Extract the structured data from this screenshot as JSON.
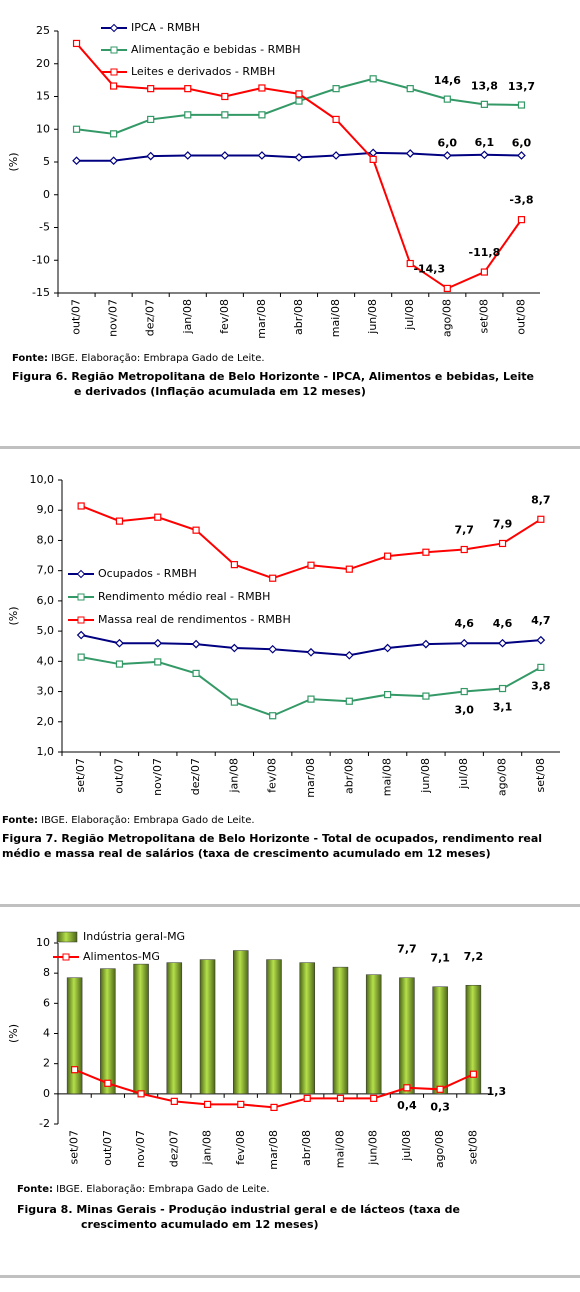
{
  "chart_data": [
    {
      "type": "line",
      "ylabel": "(%)",
      "legend": "upper left",
      "categories": [
        "out/07",
        "nov/07",
        "dez/07",
        "jan/08",
        "fev/08",
        "mar/08",
        "abr/08",
        "mai/08",
        "jun/08",
        "jul/08",
        "ago/08",
        "set/08",
        "out/08"
      ],
      "ylim": [
        -15,
        25
      ],
      "yticks": [
        -15,
        -10,
        -5,
        0,
        5,
        10,
        15,
        20,
        25
      ],
      "series": [
        {
          "name": "IPCA - RMBH",
          "color": "#000080",
          "marker": "diamond",
          "values": [
            5.2,
            5.2,
            5.9,
            6.0,
            6.0,
            6.0,
            5.7,
            6.0,
            6.4,
            6.3,
            6.0,
            6.1,
            6.0
          ],
          "value_labels": [
            null,
            null,
            null,
            null,
            null,
            null,
            null,
            null,
            null,
            null,
            "6,0",
            "6,1",
            "6,0"
          ]
        },
        {
          "name": "Alimentação e bebidas - RMBH",
          "color": "#339966",
          "marker": "square",
          "values": [
            10.0,
            9.3,
            11.5,
            12.2,
            12.2,
            12.2,
            14.3,
            16.2,
            17.7,
            16.2,
            14.6,
            13.8,
            13.7
          ],
          "value_labels": [
            null,
            null,
            null,
            null,
            null,
            null,
            null,
            null,
            null,
            null,
            "14,6",
            "13,8",
            "13,7"
          ]
        },
        {
          "name": "Leites e derivados - RMBH",
          "color": "#ff0000",
          "marker": "square",
          "values": [
            23.1,
            16.6,
            16.2,
            16.2,
            15.0,
            16.3,
            15.4,
            11.5,
            5.4,
            -10.5,
            -14.3,
            -11.8,
            -3.8
          ],
          "value_labels": [
            null,
            null,
            null,
            null,
            null,
            null,
            null,
            null,
            null,
            null,
            "-14,3",
            "-11,8",
            "-3,8"
          ]
        }
      ],
      "source_label": "Fonte:",
      "source": "IBGE. Elaboração: Embrapa Gado de Leite.",
      "caption": "Figura 6. Região Metropolitana de Belo Horizonte - IPCA, Alimentos e bebidas, Leite e derivados (Inflação acumulada em 12 meses)"
    },
    {
      "type": "line",
      "ylabel": "(%)",
      "legend": "center left",
      "categories": [
        "set/07",
        "out/07",
        "nov/07",
        "dez/07",
        "jan/08",
        "fev/08",
        "mar/08",
        "abr/08",
        "mai/08",
        "jun/08",
        "jul/08",
        "ago/08",
        "set/08"
      ],
      "ylim": [
        1.0,
        10.0
      ],
      "yticks": [
        {
          "value": 1.0,
          "label": "1,0"
        },
        {
          "value": 2.0,
          "label": "2,0"
        },
        {
          "value": 3.0,
          "label": "3,0"
        },
        {
          "value": 4.0,
          "label": "4,0"
        },
        {
          "value": 5.0,
          "label": "5,0"
        },
        {
          "value": 6.0,
          "label": "6,0"
        },
        {
          "value": 7.0,
          "label": "7,0"
        },
        {
          "value": 8.0,
          "label": "8,0"
        },
        {
          "value": 9.0,
          "label": "9,0"
        },
        {
          "value": 10.0,
          "label": "10,0"
        }
      ],
      "series": [
        {
          "name": "Ocupados - RMBH",
          "color": "#000080",
          "marker": "diamond",
          "values": [
            4.87,
            4.6,
            4.6,
            4.57,
            4.44,
            4.4,
            4.3,
            4.2,
            4.44,
            4.57,
            4.6,
            4.6,
            4.7
          ],
          "value_labels": [
            null,
            null,
            null,
            null,
            null,
            null,
            null,
            null,
            null,
            null,
            "4,6",
            "4,6",
            "4,7"
          ]
        },
        {
          "name": "Rendimento médio real - RMBH",
          "color": "#339966",
          "marker": "square",
          "values": [
            4.14,
            3.91,
            3.98,
            3.6,
            2.65,
            2.2,
            2.75,
            2.68,
            2.9,
            2.85,
            3.0,
            3.1,
            3.8
          ],
          "value_labels": [
            null,
            null,
            null,
            null,
            null,
            null,
            null,
            null,
            null,
            null,
            "3,0",
            "3,1",
            "3,8"
          ]
        },
        {
          "name": "Massa real de rendimentos - RMBH",
          "color": "#ff0000",
          "marker": "square",
          "values": [
            9.14,
            8.64,
            8.77,
            8.34,
            7.2,
            6.75,
            7.18,
            7.05,
            7.48,
            7.61,
            7.7,
            7.9,
            8.7
          ],
          "value_labels": [
            null,
            null,
            null,
            null,
            null,
            null,
            null,
            null,
            null,
            null,
            "7,7",
            "7,9",
            "8,7"
          ]
        }
      ],
      "source_label": "Fonte:",
      "source": "IBGE. Elaboração: Embrapa Gado de Leite.",
      "caption": "Figura 7. Região Metropolitana de Belo Horizonte - Total de ocupados, rendimento real médio e massa real de salários (taxa de crescimento acumulado em 12 meses)"
    },
    {
      "type": "bar",
      "ylabel": "(%)",
      "legend": "upper left",
      "categories": [
        "set/07",
        "out/07",
        "nov/07",
        "dez/07",
        "jan/08",
        "fev/08",
        "mar/08",
        "abr/08",
        "mai/08",
        "jun/08",
        "jul/08",
        "ago/08",
        "set/08"
      ],
      "ylim": [
        -2,
        10
      ],
      "yticks": [
        -2,
        0,
        2,
        4,
        6,
        8,
        10
      ],
      "series": [
        {
          "name": "Indústria geral-MG",
          "type": "bar",
          "color": "#99cc33",
          "label_color": "#339966",
          "values": [
            7.7,
            8.3,
            8.6,
            8.7,
            8.9,
            9.5,
            8.9,
            8.7,
            8.4,
            7.9,
            7.7,
            7.1,
            7.2
          ],
          "value_labels": [
            null,
            null,
            null,
            null,
            null,
            null,
            null,
            null,
            null,
            null,
            "7,7",
            "7,1",
            "7,2"
          ]
        },
        {
          "name": "Alimentos-MG",
          "type": "line",
          "color": "#ff0000",
          "marker": "square",
          "values": [
            1.6,
            0.7,
            0.0,
            -0.5,
            -0.7,
            -0.7,
            -0.9,
            -0.3,
            -0.3,
            -0.3,
            0.4,
            0.3,
            1.3
          ],
          "value_labels": [
            null,
            null,
            null,
            null,
            null,
            null,
            null,
            null,
            null,
            null,
            "0,4",
            "0,3",
            "1,3"
          ]
        }
      ],
      "source_label": "Fonte:",
      "source": "IBGE. Elaboração: Embrapa Gado de Leite.",
      "caption": "Figura 8. Minas Gerais - Produção industrial geral e de lácteos (taxa de crescimento acumulado em 12 meses)"
    }
  ]
}
